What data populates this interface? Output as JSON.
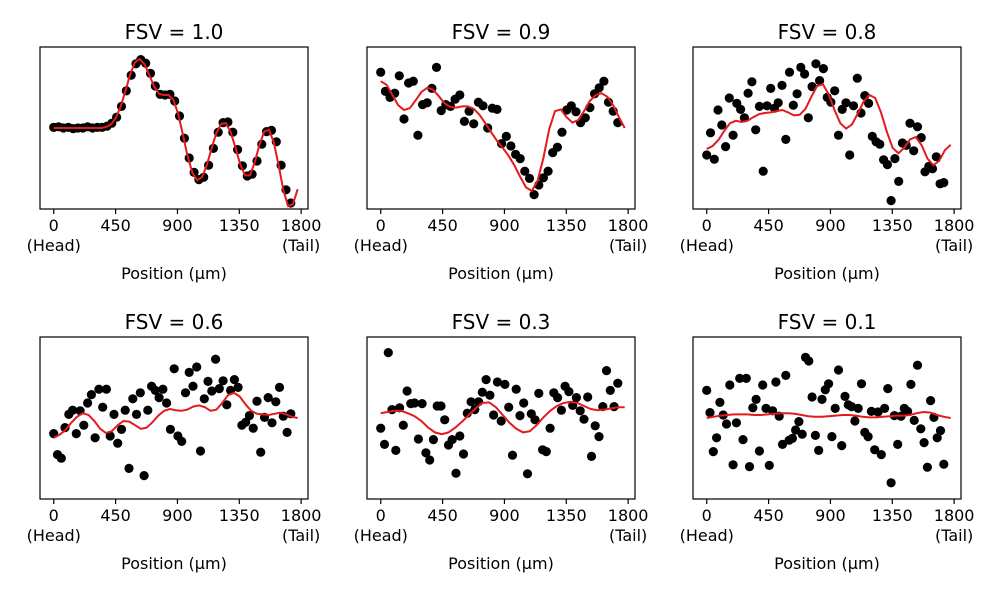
{
  "figure": {
    "marker_color": "#000000",
    "fit_color": "#e41a1c"
  },
  "chart_data": [
    {
      "type": "scatter",
      "title": "FSV = 1.0",
      "xlabel": "Position (μm)",
      "x_ticks": [
        0,
        450,
        900,
        1350,
        1800
      ],
      "x_tick_labels": [
        "0",
        "450",
        "900",
        "1350",
        "1800"
      ],
      "x_sublabels": {
        "head": "(Head)",
        "tail": "(Tail)"
      },
      "xlim": [
        -100,
        1850
      ],
      "ylim": [
        -1.35,
        1.35
      ],
      "y_ticks_visible": false,
      "scatter_y": [
        0.01,
        0.02,
        0.0,
        0.01,
        -0.01,
        0.0,
        0.0,
        0.02,
        0.0,
        0.01,
        0.01,
        0.03,
        0.08,
        0.18,
        0.36,
        0.62,
        0.88,
        1.07,
        1.14,
        1.08,
        0.91,
        0.7,
        0.56,
        0.55,
        0.56,
        0.45,
        0.2,
        -0.17,
        -0.5,
        -0.74,
        -0.86,
        -0.82,
        -0.62,
        -0.34,
        -0.07,
        0.09,
        0.1,
        -0.07,
        -0.36,
        -0.63,
        -0.8,
        -0.77,
        -0.55,
        -0.27,
        -0.06,
        -0.04,
        -0.23,
        -0.62,
        -1.03,
        -1.25
      ],
      "fit_y": [
        0.0,
        0.0,
        0.0,
        0.0,
        0.0,
        0.0,
        0.0,
        0.0,
        0.0,
        0.0,
        0.0,
        0.02,
        0.06,
        0.17,
        0.36,
        0.62,
        0.9,
        1.1,
        1.15,
        1.06,
        0.88,
        0.69,
        0.57,
        0.55,
        0.55,
        0.47,
        0.24,
        -0.11,
        -0.48,
        -0.75,
        -0.87,
        -0.82,
        -0.62,
        -0.34,
        -0.08,
        0.07,
        0.08,
        -0.07,
        -0.33,
        -0.61,
        -0.79,
        -0.79,
        -0.58,
        -0.28,
        -0.06,
        -0.03,
        -0.24,
        -0.62,
        -1.03,
        -1.3,
        -1.27,
        -1.02
      ]
    },
    {
      "type": "scatter",
      "title": "FSV = 0.9",
      "xlabel": "Position (μm)",
      "x_ticks": [
        0,
        450,
        900,
        1350,
        1800
      ],
      "x_tick_labels": [
        "0",
        "450",
        "900",
        "1350",
        "1800"
      ],
      "x_sublabels": {
        "head": "(Head)",
        "tail": "(Tail)"
      },
      "xlim": [
        -100,
        1850
      ],
      "ylim": [
        -1.35,
        1.35
      ],
      "y_ticks_visible": false,
      "scatter_y": [
        0.93,
        0.61,
        0.51,
        0.58,
        0.87,
        0.15,
        0.75,
        0.78,
        -0.12,
        0.39,
        0.42,
        0.66,
        1.01,
        0.29,
        0.39,
        0.36,
        0.48,
        0.55,
        0.11,
        0.28,
        0.07,
        0.43,
        0.37,
        0.0,
        0.33,
        0.31,
        -0.26,
        -0.14,
        -0.3,
        -0.44,
        -0.51,
        -0.72,
        -0.84,
        -1.11,
        -0.95,
        -0.83,
        -0.72,
        -0.41,
        -0.32,
        -0.07,
        0.3,
        0.37,
        0.27,
        0.09,
        0.17,
        0.34,
        0.57,
        0.67,
        0.78,
        0.43,
        0.28,
        0.09
      ],
      "fit_y": [
        0.78,
        0.72,
        0.55,
        0.38,
        0.3,
        0.33,
        0.46,
        0.6,
        0.67,
        0.64,
        0.53,
        0.41,
        0.35,
        0.34,
        0.36,
        0.36,
        0.32,
        0.22,
        0.08,
        -0.07,
        -0.21,
        -0.33,
        -0.46,
        -0.62,
        -0.81,
        -0.99,
        -1.05,
        -0.88,
        -0.5,
        -0.02,
        0.28,
        0.31,
        0.18,
        0.09,
        0.13,
        0.28,
        0.45,
        0.55,
        0.58,
        0.52,
        0.38,
        0.18,
        0.0
      ]
    },
    {
      "type": "scatter",
      "title": "FSV = 0.8",
      "xlabel": "Position (μm)",
      "x_ticks": [
        0,
        450,
        900,
        1350,
        1800
      ],
      "x_tick_labels": [
        "0",
        "450",
        "900",
        "1350",
        "1800"
      ],
      "x_sublabels": {
        "head": "(Head)",
        "tail": "(Tail)"
      },
      "xlim": [
        -100,
        1850
      ],
      "ylim": [
        -1.35,
        1.35
      ],
      "y_ticks_visible": false,
      "scatter_y": [
        -0.45,
        -0.08,
        -0.52,
        0.3,
        0.05,
        -0.31,
        0.5,
        -0.12,
        0.41,
        0.31,
        0.17,
        0.58,
        0.77,
        -0.03,
        0.36,
        -0.72,
        0.37,
        0.66,
        0.33,
        0.42,
        0.71,
        -0.19,
        0.93,
        0.38,
        0.57,
        1.01,
        0.9,
        0.17,
        0.69,
        1.07,
        0.79,
        0.99,
        0.51,
        0.43,
        0.62,
        -0.12,
        0.31,
        0.42,
        -0.45,
        0.37,
        0.83,
        0.25,
        0.54,
        0.41,
        -0.14,
        -0.23,
        -0.27,
        -0.53,
        -0.61,
        -1.21,
        -0.51,
        -0.89,
        -0.25,
        -0.29,
        0.08,
        -0.38,
        0.02,
        -0.16,
        -0.73,
        -0.64,
        -0.68,
        -0.48,
        -0.93,
        -0.91
      ],
      "fit_y": [
        -0.35,
        -0.3,
        -0.2,
        -0.05,
        0.08,
        0.12,
        0.1,
        0.12,
        0.18,
        0.23,
        0.25,
        0.26,
        0.28,
        0.3,
        0.26,
        0.21,
        0.22,
        0.32,
        0.52,
        0.7,
        0.73,
        0.56,
        0.3,
        0.08,
        -0.01,
        0.06,
        0.24,
        0.44,
        0.55,
        0.5,
        0.26,
        -0.06,
        -0.33,
        -0.42,
        -0.33,
        -0.19,
        -0.15,
        -0.29,
        -0.51,
        -0.62,
        -0.55,
        -0.37,
        -0.28
      ]
    },
    {
      "type": "scatter",
      "title": "FSV = 0.6",
      "xlabel": "Position (μm)",
      "x_ticks": [
        0,
        450,
        900,
        1350,
        1800
      ],
      "x_tick_labels": [
        "0",
        "450",
        "900",
        "1350",
        "1800"
      ],
      "x_sublabels": {
        "head": "(Head)",
        "tail": "(Tail)"
      },
      "xlim": [
        -100,
        1850
      ],
      "ylim": [
        -1.35,
        1.35
      ],
      "y_ticks_visible": false,
      "scatter_y": [
        -0.26,
        -0.61,
        -0.67,
        -0.16,
        0.06,
        0.13,
        -0.26,
        0.12,
        -0.12,
        0.25,
        0.39,
        -0.33,
        0.48,
        0.18,
        0.48,
        -0.3,
        0.06,
        -0.42,
        -0.19,
        0.13,
        -0.84,
        0.32,
        0.06,
        0.42,
        -0.96,
        0.13,
        0.53,
        0.46,
        0.34,
        0.48,
        0.25,
        -0.19,
        0.82,
        -0.3,
        -0.39,
        0.42,
        0.76,
        0.53,
        0.85,
        -0.55,
        0.32,
        0.61,
        0.45,
        0.98,
        0.49,
        0.62,
        0.22,
        0.46,
        0.64,
        0.51,
        -0.12,
        -0.07,
        0.04,
        -0.17,
        0.28,
        -0.57,
        0.01,
        0.34,
        -0.08,
        0.27,
        0.51,
        0.03,
        -0.24,
        0.07
      ],
      "fit_y": [
        -0.33,
        -0.28,
        -0.2,
        -0.08,
        0.02,
        0.08,
        0.05,
        -0.05,
        -0.18,
        -0.25,
        -0.22,
        -0.12,
        -0.05,
        -0.06,
        -0.12,
        -0.18,
        -0.16,
        -0.07,
        0.04,
        0.12,
        0.15,
        0.13,
        0.12,
        0.14,
        0.19,
        0.21,
        0.18,
        0.12,
        0.14,
        0.25,
        0.38,
        0.42,
        0.36,
        0.23,
        0.12,
        0.07,
        0.06,
        0.05,
        0.07,
        0.09,
        0.06,
        0.02,
        0.0
      ]
    },
    {
      "type": "scatter",
      "title": "FSV = 0.3",
      "xlabel": "Position (μm)",
      "x_ticks": [
        0,
        450,
        900,
        1350,
        1800
      ],
      "x_tick_labels": [
        "0",
        "450",
        "900",
        "1350",
        "1800"
      ],
      "x_sublabels": {
        "head": "(Head)",
        "tail": "(Tail)"
      },
      "xlim": [
        -100,
        1850
      ],
      "ylim": [
        -1.35,
        1.35
      ],
      "y_ticks_visible": false,
      "scatter_y": [
        -0.17,
        -0.44,
        1.09,
        0.14,
        -0.54,
        0.17,
        -0.12,
        0.45,
        0.24,
        0.25,
        -0.35,
        0.24,
        -0.58,
        -0.7,
        -0.36,
        0.2,
        0.2,
        -0.03,
        -0.45,
        -0.36,
        -0.92,
        -0.3,
        -0.6,
        0.08,
        0.27,
        0.14,
        0.27,
        0.43,
        0.64,
        0.38,
        0.05,
        0.6,
        -0.05,
        0.56,
        0.18,
        -0.62,
        0.48,
        0.04,
        0.25,
        -0.93,
        0.07,
        -0.03,
        0.41,
        -0.53,
        -0.56,
        -0.17,
        0.42,
        0.34,
        0.13,
        0.53,
        0.44,
        0.21,
        0.34,
        0.12,
        -0.02,
        0.35,
        -0.64,
        -0.13,
        -0.31,
        0.19,
        0.79,
        0.46,
        0.19,
        0.58
      ],
      "fit_y": [
        0.08,
        0.1,
        0.12,
        0.12,
        0.08,
        0.03,
        -0.05,
        -0.16,
        -0.24,
        -0.27,
        -0.24,
        -0.16,
        -0.06,
        0.05,
        0.16,
        0.25,
        0.26,
        0.18,
        0.05,
        -0.08,
        -0.18,
        -0.24,
        -0.22,
        -0.12,
        0.01,
        0.12,
        0.2,
        0.25,
        0.27,
        0.25,
        0.2,
        0.15,
        0.13,
        0.14,
        0.16,
        0.18,
        0.18
      ]
    },
    {
      "type": "scatter",
      "title": "FSV = 0.1",
      "xlabel": "Position (μm)",
      "x_ticks": [
        0,
        450,
        900,
        1350,
        1800
      ],
      "x_tick_labels": [
        "0",
        "450",
        "900",
        "1350",
        "1800"
      ],
      "x_sublabels": {
        "head": "(Head)",
        "tail": "(Tail)"
      },
      "xlim": [
        -100,
        1850
      ],
      "ylim": [
        -1.35,
        1.35
      ],
      "y_ticks_visible": false,
      "scatter_y": [
        0.46,
        0.09,
        -0.56,
        -0.33,
        0.26,
        0.05,
        -0.1,
        0.55,
        -0.78,
        -0.08,
        0.66,
        -0.36,
        0.66,
        -0.81,
        0.17,
        0.31,
        -0.55,
        0.55,
        0.16,
        -0.79,
        0.12,
        0.6,
        0.03,
        -0.44,
        0.71,
        -0.37,
        -0.34,
        -0.2,
        -0.06,
        -0.27,
        1.01,
        0.95,
        0.35,
        -0.29,
        -0.54,
        0.31,
        0.47,
        0.57,
        -0.31,
        0.16,
        0.8,
        -0.46,
        0.36,
        0.22,
        0.19,
        -0.05,
        0.16,
        0.57,
        -0.24,
        -0.31,
        0.11,
        -0.53,
        0.1,
        -0.61,
        0.16,
        0.49,
        -1.08,
        0.04,
        -0.44,
        0.03,
        0.16,
        0.11,
        0.56,
        -0.04,
        0.88,
        -0.18,
        -0.41,
        -0.82,
        0.29,
        0.01,
        -0.33,
        -0.21,
        -0.77
      ],
      "fit_y": [
        0.0,
        0.02,
        0.04,
        0.05,
        0.06,
        0.06,
        0.06,
        0.05,
        0.05,
        0.06,
        0.07,
        0.08,
        0.08,
        0.07,
        0.05,
        0.03,
        0.02,
        0.02,
        0.03,
        0.04,
        0.05,
        0.05,
        0.04,
        0.02,
        0.01,
        0.01,
        0.02,
        0.03,
        0.04,
        0.04,
        0.05,
        0.08,
        0.1,
        0.09,
        0.05,
        0.02,
        0.0
      ]
    }
  ]
}
